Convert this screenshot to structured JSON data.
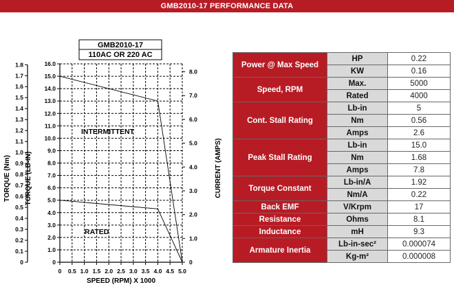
{
  "banner": {
    "title": "GMB2010-17 PERFORMANCE DATA"
  },
  "chart_data": {
    "type": "line",
    "legend_box": [
      "GMB2010-17",
      "110AC OR 220 AC"
    ],
    "xlabel": "SPEED (RPM) X 1000",
    "ylabel_nm": "TORQUE (Nm)",
    "ylabel_lbin": "TORQUE (LB-IN)",
    "ylabel_amps": "CURRENT (AMPS)",
    "x_ticks": [
      "0",
      "0.5",
      "1.0",
      "1.5",
      "2.0",
      "2.5",
      "3.0",
      "3.5",
      "4.0",
      "4.5",
      "5.0"
    ],
    "y_lbin_ticks": [
      "16.0",
      "15.0",
      "14.0",
      "13.0",
      "12.0",
      "11.0",
      "10.0",
      "9.0",
      "8.0",
      "7.0",
      "6.0",
      "5.0",
      "4.0",
      "3.0",
      "2.0",
      "1.0",
      "0"
    ],
    "y_nm_ticks": [
      "1.8",
      "1.7",
      "1.6",
      "1.5",
      "1.4",
      "1.3",
      "1.2",
      "1.1",
      "1.0",
      "0.9",
      "0.8",
      "0.7",
      "0.6",
      "0.5",
      "0.4",
      "0.3",
      "0.2",
      "0.1",
      "0"
    ],
    "y_amps_ticks": [
      "8.0",
      "7.0",
      "6.0",
      "5.0",
      "4.0",
      "3.0",
      "2.0",
      "1.0",
      "0"
    ],
    "xlim": [
      0,
      5
    ],
    "ylim_lbin": [
      0,
      16
    ],
    "series": [
      {
        "x": [
          0,
          4.0,
          5.0
        ],
        "y": [
          15.0,
          13.0,
          0
        ]
      },
      {
        "x": [
          0,
          4.0,
          5.0
        ],
        "y": [
          5.0,
          4.3,
          0
        ]
      }
    ],
    "annotations": [
      "INTERMITTENT",
      "RATED"
    ]
  },
  "table": {
    "rows": [
      {
        "category": "Power @ Max Speed",
        "items": [
          {
            "unit": "HP",
            "value": "0.22"
          },
          {
            "unit": "KW",
            "value": "0.16"
          }
        ]
      },
      {
        "category": "Speed, RPM",
        "items": [
          {
            "unit": "Max.",
            "value": "5000"
          },
          {
            "unit": "Rated",
            "value": "4000"
          }
        ]
      },
      {
        "category": "Cont. Stall Rating",
        "items": [
          {
            "unit": "Lb-in",
            "value": "5"
          },
          {
            "unit": "Nm",
            "value": "0.56"
          },
          {
            "unit": "Amps",
            "value": "2.6"
          }
        ]
      },
      {
        "category": "Peak Stall Rating",
        "items": [
          {
            "unit": "Lb-in",
            "value": "15.0"
          },
          {
            "unit": "Nm",
            "value": "1.68"
          },
          {
            "unit": "Amps",
            "value": "7.8"
          }
        ]
      },
      {
        "category": "Torque Constant",
        "items": [
          {
            "unit": "Lb-in/A",
            "value": "1.92"
          },
          {
            "unit": "Nm/A",
            "value": "0.22"
          }
        ]
      },
      {
        "category": "Back EMF",
        "items": [
          {
            "unit": "V/Krpm",
            "value": "17"
          }
        ]
      },
      {
        "category": "Resistance",
        "items": [
          {
            "unit": "Ohms",
            "value": "8.1"
          }
        ]
      },
      {
        "category": "Inductance",
        "items": [
          {
            "unit": "mH",
            "value": "9.3"
          }
        ]
      },
      {
        "category": "Armature Inertia",
        "items": [
          {
            "unit": "Lb-in-sec²",
            "value": "0.000074"
          },
          {
            "unit": "Kg-m²",
            "value": "0.000008"
          }
        ]
      }
    ]
  }
}
